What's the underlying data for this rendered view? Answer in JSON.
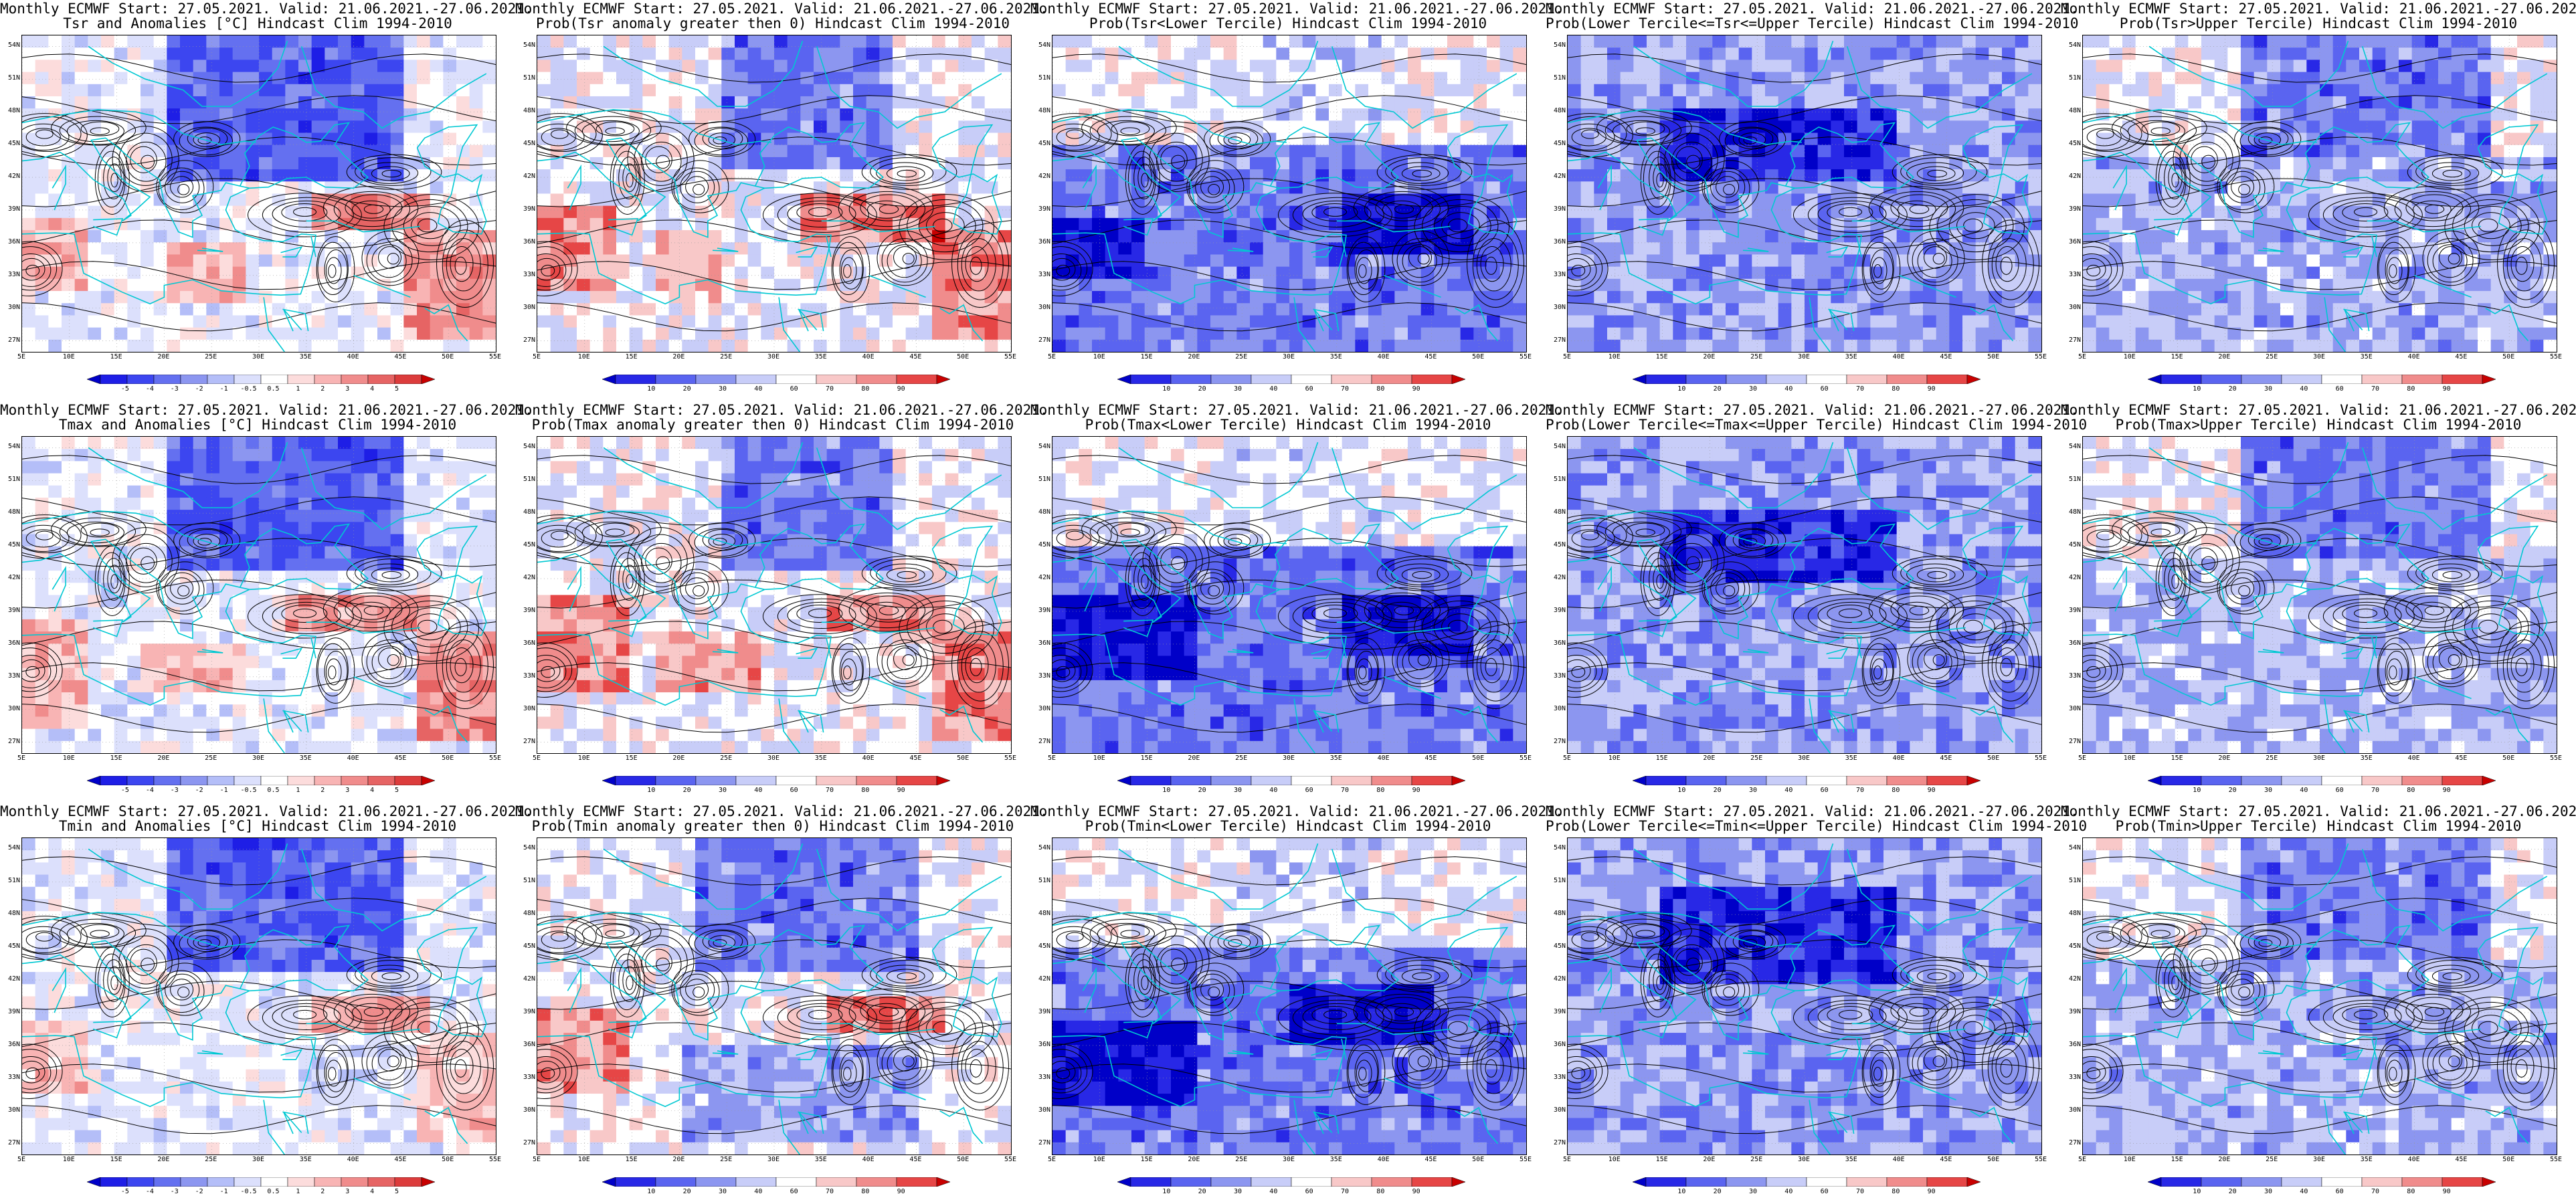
{
  "title_line1": "Monthly ECMWF Start: 27.05.2021. Valid: 21.06.2021.-27.06.2021.",
  "latitude_ticks": [
    "54N",
    "51N",
    "48N",
    "45N",
    "42N",
    "39N",
    "36N",
    "33N",
    "30N",
    "27N"
  ],
  "longitude_ticks": [
    "5E",
    "10E",
    "15E",
    "20E",
    "25E",
    "30E",
    "35E",
    "40E",
    "45E",
    "50E",
    "55E"
  ],
  "colors": {
    "deep_blue": "#1414e6",
    "blue": "#4b5af0",
    "mid_blue": "#8c96f0",
    "light_blue": "#c8cdf8",
    "white": "#ffffff",
    "light_red": "#f8c8c8",
    "mid_red": "#f08c8c",
    "red": "#e64646",
    "deep_red": "#c80000",
    "coast": "#00c8d2",
    "contour": "#000000"
  },
  "colorbars": {
    "anomaly": {
      "labels": [
        "-5",
        "-4",
        "-3",
        "-2",
        "-1",
        "-0.5",
        "0.5",
        "1",
        "2",
        "3",
        "4",
        "5"
      ],
      "colors": [
        "#0000c8",
        "#1e1ee6",
        "#3c46f0",
        "#6470f0",
        "#8c96f0",
        "#b4bef8",
        "#dce0fc",
        "#ffffff",
        "#fcdcdc",
        "#f8b4b4",
        "#f08c8c",
        "#e66464",
        "#dc3c3c",
        "#c80000"
      ]
    },
    "probability": {
      "labels": [
        "10",
        "20",
        "30",
        "40",
        "60",
        "70",
        "80",
        "90"
      ],
      "colors": [
        "#0000c8",
        "#2828e6",
        "#5a64f0",
        "#8c96f0",
        "#c8cdf8",
        "#ffffff",
        "#f8c8c8",
        "#f08c8c",
        "#e64646",
        "#c80000"
      ]
    }
  },
  "panels": [
    {
      "title": "Tsr and Anomalies [°C] Hindcast Clim 1994-2010",
      "kind": "anomaly",
      "field": "tsr_anom",
      "fields": [
        {
          "lon": [
            20,
            45
          ],
          "lat": [
            42,
            55
          ],
          "level": 1,
          "weight": 1
        },
        {
          "lon": [
            5,
            12
          ],
          "lat": [
            32,
            38
          ],
          "level": 0.6,
          "weight": -1
        },
        {
          "lon": [
            20,
            28
          ],
          "lat": [
            30,
            36
          ],
          "level": 0.7,
          "weight": -1
        },
        {
          "lon": [
            35,
            48
          ],
          "lat": [
            37,
            40
          ],
          "level": 1,
          "weight": -1
        },
        {
          "lon": [
            45,
            55
          ],
          "lat": [
            27,
            37
          ],
          "level": 0.8,
          "weight": -1
        }
      ]
    },
    {
      "title": "Prob(Tsr anomaly greater then 0) Hindcast Clim 1994-2010",
      "kind": "probability",
      "field": "tsr_prob_pos",
      "fields": [
        {
          "lon": [
            25,
            42
          ],
          "lat": [
            43,
            55
          ],
          "level": 1,
          "weight": 1
        },
        {
          "lon": [
            5,
            14
          ],
          "lat": [
            32,
            39
          ],
          "level": 1,
          "weight": -1
        },
        {
          "lon": [
            18,
            25
          ],
          "lat": [
            31,
            37
          ],
          "level": 0.7,
          "weight": -1
        },
        {
          "lon": [
            33,
            48
          ],
          "lat": [
            36,
            40
          ],
          "level": 1,
          "weight": -1
        },
        {
          "lon": [
            46,
            55
          ],
          "lat": [
            27,
            37
          ],
          "level": 1,
          "weight": -1
        }
      ]
    },
    {
      "title": "Prob(Tsr<Lower Tercile) Hindcast Clim 1994-2010",
      "kind": "probability",
      "field": "tsr_lower",
      "fields": [
        {
          "lon": [
            5,
            55
          ],
          "lat": [
            26,
            45
          ],
          "level": 1,
          "weight": 1
        },
        {
          "lon": [
            25,
            40
          ],
          "lat": [
            45,
            55
          ],
          "level": 0.3,
          "weight": 0.5
        },
        {
          "lon": [
            5,
            15
          ],
          "lat": [
            33,
            38
          ],
          "level": 1,
          "weight": 1
        },
        {
          "lon": [
            35,
            50
          ],
          "lat": [
            35,
            40
          ],
          "level": 1,
          "weight": 1
        }
      ]
    },
    {
      "title": "Prob(Lower Tercile<=Tsr<=Upper Tercile) Hindcast Clim 1994-2010",
      "kind": "probability",
      "field": "tsr_middle",
      "fields": [
        {
          "lon": [
            5,
            55
          ],
          "lat": [
            26,
            55
          ],
          "level": 0.7,
          "weight": 1
        },
        {
          "lon": [
            15,
            40
          ],
          "lat": [
            42,
            48
          ],
          "level": 1,
          "weight": 1
        }
      ]
    },
    {
      "title": "Prob(Tsr>Upper Tercile) Hindcast Clim 1994-2010",
      "kind": "probability",
      "field": "tsr_upper",
      "fields": [
        {
          "lon": [
            22,
            48
          ],
          "lat": [
            44,
            55
          ],
          "level": 1,
          "weight": 1
        },
        {
          "lon": [
            5,
            55
          ],
          "lat": [
            26,
            44
          ],
          "level": 0.55,
          "weight": 1
        }
      ]
    },
    {
      "title": "Tmax and Anomalies [°C] Hindcast Clim 1994-2010",
      "kind": "anomaly",
      "field": "tmax_anom",
      "fields": [
        {
          "lon": [
            20,
            45
          ],
          "lat": [
            43,
            55
          ],
          "level": 1,
          "weight": 1
        },
        {
          "lon": [
            5,
            12
          ],
          "lat": [
            28,
            38
          ],
          "level": 0.6,
          "weight": -1
        },
        {
          "lon": [
            18,
            28
          ],
          "lat": [
            32,
            36
          ],
          "level": 0.6,
          "weight": -1
        },
        {
          "lon": [
            33,
            48
          ],
          "lat": [
            37,
            40
          ],
          "level": 0.8,
          "weight": -1
        },
        {
          "lon": [
            47,
            55
          ],
          "lat": [
            27,
            37
          ],
          "level": 0.9,
          "weight": -1
        }
      ]
    },
    {
      "title": "Prob(Tmax anomaly greater then 0) Hindcast Clim 1994-2010",
      "kind": "probability",
      "field": "tmax_prob_pos",
      "fields": [
        {
          "lon": [
            25,
            42
          ],
          "lat": [
            43,
            55
          ],
          "level": 1,
          "weight": 1
        },
        {
          "lon": [
            5,
            15
          ],
          "lat": [
            32,
            40
          ],
          "level": 1,
          "weight": -1
        },
        {
          "lon": [
            18,
            28
          ],
          "lat": [
            32,
            37
          ],
          "level": 0.8,
          "weight": -1
        },
        {
          "lon": [
            35,
            48
          ],
          "lat": [
            37,
            40
          ],
          "level": 1,
          "weight": -1
        },
        {
          "lon": [
            46,
            55
          ],
          "lat": [
            27,
            37
          ],
          "level": 1,
          "weight": -1
        }
      ]
    },
    {
      "title": "Prob(Tmax<Lower Tercile) Hindcast Clim 1994-2010",
      "kind": "probability",
      "field": "tmax_lower",
      "fields": [
        {
          "lon": [
            5,
            55
          ],
          "lat": [
            26,
            45
          ],
          "level": 1,
          "weight": 1
        },
        {
          "lon": [
            25,
            40
          ],
          "lat": [
            45,
            55
          ],
          "level": 0.3,
          "weight": 0.5
        },
        {
          "lon": [
            5,
            20
          ],
          "lat": [
            33,
            40
          ],
          "level": 1,
          "weight": 1
        },
        {
          "lon": [
            35,
            50
          ],
          "lat": [
            35,
            40
          ],
          "level": 1,
          "weight": 1
        }
      ]
    },
    {
      "title": "Prob(Lower Tercile<=Tmax<=Upper Tercile) Hindcast Clim 1994-2010",
      "kind": "probability",
      "field": "tmax_middle",
      "fields": [
        {
          "lon": [
            5,
            55
          ],
          "lat": [
            26,
            55
          ],
          "level": 0.7,
          "weight": 1
        },
        {
          "lon": [
            15,
            40
          ],
          "lat": [
            42,
            48
          ],
          "level": 1,
          "weight": 1
        }
      ]
    },
    {
      "title": "Prob(Tmax>Upper Tercile) Hindcast Clim 1994-2010",
      "kind": "probability",
      "field": "tmax_upper",
      "fields": [
        {
          "lon": [
            22,
            48
          ],
          "lat": [
            44,
            55
          ],
          "level": 1,
          "weight": 1
        },
        {
          "lon": [
            5,
            55
          ],
          "lat": [
            26,
            44
          ],
          "level": 0.5,
          "weight": 1
        }
      ]
    },
    {
      "title": "Tmin and Anomalies [°C] Hindcast Clim 1994-2010",
      "kind": "anomaly",
      "field": "tmin_anom",
      "fields": [
        {
          "lon": [
            20,
            45
          ],
          "lat": [
            43,
            55
          ],
          "level": 1,
          "weight": 1
        },
        {
          "lon": [
            5,
            12
          ],
          "lat": [
            32,
            38
          ],
          "level": 0.5,
          "weight": -1
        },
        {
          "lon": [
            35,
            48
          ],
          "lat": [
            37,
            40
          ],
          "level": 0.7,
          "weight": -1
        },
        {
          "lon": [
            47,
            55
          ],
          "lat": [
            27,
            37
          ],
          "level": 0.5,
          "weight": -1
        }
      ]
    },
    {
      "title": "Prob(Tmin anomaly greater then 0) Hindcast Clim 1994-2010",
      "kind": "probability",
      "field": "tmin_prob_pos",
      "fields": [
        {
          "lon": [
            22,
            45
          ],
          "lat": [
            43,
            55
          ],
          "level": 1,
          "weight": 1
        },
        {
          "lon": [
            5,
            15
          ],
          "lat": [
            32,
            39
          ],
          "level": 1,
          "weight": -1
        },
        {
          "lon": [
            35,
            48
          ],
          "lat": [
            37,
            40
          ],
          "level": 1,
          "weight": -1
        },
        {
          "lon": [
            20,
            45
          ],
          "lat": [
            27,
            36
          ],
          "level": 0.6,
          "weight": 1
        }
      ]
    },
    {
      "title": "Prob(Tmin<Lower Tercile) Hindcast Clim 1994-2010",
      "kind": "probability",
      "field": "tmin_lower",
      "fields": [
        {
          "lon": [
            5,
            55
          ],
          "lat": [
            26,
            45
          ],
          "level": 1,
          "weight": 1
        },
        {
          "lon": [
            25,
            40
          ],
          "lat": [
            45,
            55
          ],
          "level": 0.3,
          "weight": 0.5
        },
        {
          "lon": [
            5,
            20
          ],
          "lat": [
            30,
            38
          ],
          "level": 1,
          "weight": 1
        },
        {
          "lon": [
            30,
            45
          ],
          "lat": [
            36,
            42
          ],
          "level": 1,
          "weight": 1
        }
      ]
    },
    {
      "title": "Prob(Lower Tercile<=Tmin<=Upper Tercile) Hindcast Clim 1994-2010",
      "kind": "probability",
      "field": "tmin_middle",
      "fields": [
        {
          "lon": [
            5,
            55
          ],
          "lat": [
            26,
            55
          ],
          "level": 0.75,
          "weight": 1
        },
        {
          "lon": [
            15,
            40
          ],
          "lat": [
            42,
            50
          ],
          "level": 1,
          "weight": 1
        }
      ]
    },
    {
      "title": "Prob(Tmin>Upper Tercile) Hindcast Clim 1994-2010",
      "kind": "probability",
      "field": "tmin_upper",
      "fields": [
        {
          "lon": [
            22,
            48
          ],
          "lat": [
            44,
            55
          ],
          "level": 1,
          "weight": 1
        },
        {
          "lon": [
            5,
            55
          ],
          "lat": [
            26,
            44
          ],
          "level": 0.55,
          "weight": 1
        }
      ]
    }
  ]
}
